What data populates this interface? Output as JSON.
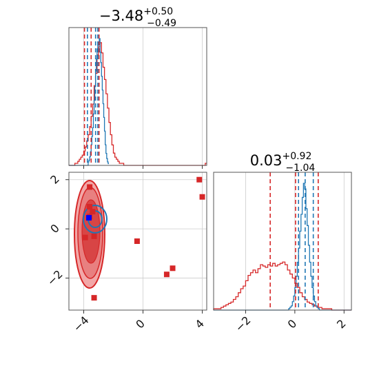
{
  "chart_data": {
    "type": "corner",
    "colors": {
      "red": "#d62728",
      "blue": "#1f77b4",
      "true_point": "#0000ff"
    },
    "panels": [
      {
        "name": "hist_x",
        "type": "histogram",
        "title": {
          "value": "−3.48",
          "upper": "+0.50",
          "lower": "−0.49"
        },
        "xlim": [
          -5,
          4.3
        ],
        "grid": true,
        "quantiles_red": [
          -3.95,
          -3.5,
          -2.97
        ],
        "quantiles_blue": [
          -3.75,
          -3.2,
          -3.05
        ],
        "red_hist": {
          "start": -5.0,
          "step": 0.1,
          "counts": [
            0,
            0,
            0,
            0,
            1,
            1,
            2,
            3,
            4,
            5,
            7,
            9,
            12,
            15,
            19,
            24,
            30,
            39,
            45,
            54,
            58,
            60,
            55,
            48,
            42,
            35,
            28,
            21,
            15,
            10,
            6,
            4,
            3,
            2,
            1,
            1,
            1,
            0,
            0,
            0,
            0,
            0,
            0,
            0,
            0,
            0,
            0,
            0,
            0,
            0,
            0,
            0,
            0,
            0,
            0,
            0,
            0,
            0,
            0,
            0,
            0,
            0,
            0,
            0,
            0,
            0,
            0,
            0,
            0,
            0,
            0,
            0,
            0,
            0,
            0,
            0,
            0,
            0,
            0,
            0,
            0,
            0,
            0,
            0,
            0,
            0,
            0,
            0,
            0,
            0,
            0,
            0,
            1
          ]
        },
        "blue_hist": {
          "start": -5.0,
          "step": 0.05,
          "counts": [
            0,
            0,
            0,
            0,
            0,
            0,
            0,
            0,
            0,
            0,
            0,
            0,
            0,
            0,
            0,
            0,
            0,
            0,
            0,
            0,
            0,
            0,
            0,
            0,
            0,
            0,
            2,
            3,
            5,
            8,
            12,
            17,
            22,
            30,
            38,
            46,
            55,
            62,
            68,
            70,
            72,
            74,
            66,
            60,
            52,
            44,
            36,
            28,
            20,
            12,
            7,
            4,
            2,
            1
          ]
        }
      },
      {
        "name": "scatter_xy",
        "type": "contour_scatter",
        "xlim": [
          -5,
          4.3
        ],
        "ylim": [
          -3.3,
          2.3
        ],
        "grid": true,
        "xticks": [
          "−4",
          "0",
          "4"
        ],
        "yticks": [
          "−2",
          "0",
          "2"
        ],
        "red_points": [
          [
            -3.6,
            1.7
          ],
          [
            -3.6,
            0.9
          ],
          [
            -3.4,
            0.7
          ],
          [
            -3.6,
            0.5
          ],
          [
            -3.3,
            -0.3
          ],
          [
            -3.9,
            -0.35
          ],
          [
            -0.4,
            -0.5
          ],
          [
            1.6,
            -1.85
          ],
          [
            2.0,
            -1.6
          ],
          [
            -3.3,
            -2.8
          ],
          [
            3.8,
            2.0
          ],
          [
            4.0,
            1.3
          ]
        ],
        "blue_point": [
          -3.65,
          0.45
        ]
      },
      {
        "name": "hist_y",
        "type": "histogram",
        "title": {
          "value": "0.03",
          "upper": "+0.92",
          "lower": "−1.04"
        },
        "xlim": [
          -3.3,
          2.3
        ],
        "grid": true,
        "xticks": [
          "−2",
          "0",
          "2"
        ],
        "quantiles_red": [
          -1.0,
          0.03,
          0.95
        ],
        "quantiles_blue": [
          0.15,
          0.42,
          0.75
        ],
        "red_hist": {
          "start": -3.3,
          "step": 0.1,
          "counts": [
            1,
            1,
            1,
            2,
            3,
            4,
            5,
            6,
            8,
            10,
            13,
            16,
            18,
            22,
            26,
            28,
            30,
            28,
            31,
            34,
            33,
            32,
            34,
            33,
            35,
            33,
            34,
            35,
            36,
            34,
            30,
            27,
            24,
            20,
            17,
            13,
            10,
            8,
            6,
            5,
            4,
            3,
            2,
            2,
            1,
            1,
            1,
            1,
            0,
            0,
            0,
            0,
            0,
            0,
            0,
            0
          ]
        },
        "blue_hist": {
          "start": -3.3,
          "step": 0.05,
          "counts": [
            0,
            0,
            0,
            0,
            0,
            0,
            0,
            0,
            0,
            0,
            0,
            0,
            0,
            0,
            0,
            0,
            0,
            0,
            0,
            0,
            0,
            0,
            0,
            0,
            0,
            0,
            0,
            0,
            0,
            0,
            0,
            0,
            0,
            0,
            0,
            0,
            0,
            0,
            0,
            0,
            0,
            0,
            0,
            0,
            0,
            0,
            0,
            0,
            0,
            0,
            0,
            0,
            0,
            0,
            0,
            0,
            0,
            0,
            0,
            0,
            0,
            1,
            2,
            3,
            6,
            10,
            16,
            24,
            34,
            44,
            56,
            68,
            80,
            90,
            86,
            72,
            60,
            46,
            34,
            24,
            16,
            10,
            6,
            3,
            2,
            1,
            0,
            0,
            0,
            0,
            0,
            0,
            0,
            0,
            0,
            0,
            0,
            0,
            0,
            0,
            0,
            0,
            0,
            0,
            0,
            0,
            0,
            0,
            0,
            0,
            0,
            0
          ]
        }
      }
    ]
  }
}
